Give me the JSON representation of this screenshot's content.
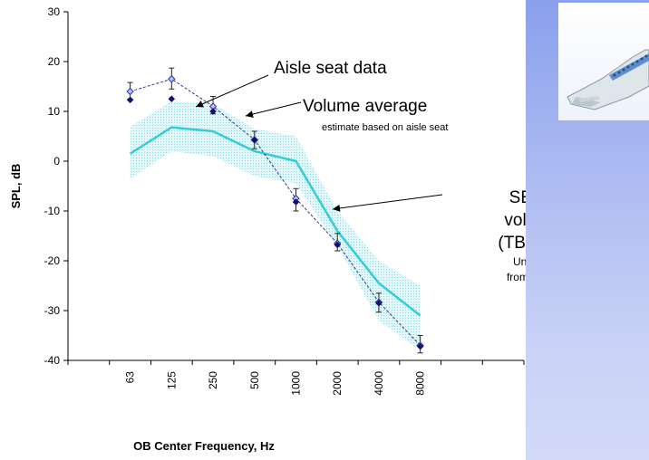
{
  "chart_data": {
    "type": "line",
    "xlabel": "OB Center Frequency, Hz",
    "ylabel": "SPL, dB",
    "ylim": [
      -40,
      30
    ],
    "yticks": [
      30,
      20,
      10,
      0,
      -10,
      -20,
      -30,
      -40
    ],
    "categories": [
      "63",
      "125",
      "250",
      "500",
      "1000",
      "2000",
      "4000",
      "8000"
    ],
    "grid": false,
    "legend": "none",
    "series": [
      {
        "name": "",
        "style": "band",
        "color": "#9fe3ea",
        "lower": [
          -3.5,
          2,
          1,
          -3,
          -4.5,
          -17,
          -32,
          -38
        ],
        "upper": [
          7,
          12,
          11.5,
          6.5,
          5,
          -10,
          -20,
          -25
        ]
      },
      {
        "name": "",
        "style": "line",
        "color": "#33ccd9",
        "values": [
          1.5,
          6.8,
          6,
          2,
          0,
          -14,
          -24.5,
          -31
        ]
      },
      {
        "name": "",
        "style": "dashed-markers",
        "color": "#33339a",
        "values": [
          14,
          16.5,
          11,
          4.3,
          -7.5,
          -16.5,
          -28.3,
          -37
        ],
        "err_low": [
          12.5,
          14.5,
          9.5,
          2.5,
          -10,
          -18,
          -30.3,
          -38.5
        ],
        "err_high": [
          15.8,
          18.7,
          13,
          6,
          -5.5,
          -14.5,
          -26.5,
          -35
        ]
      },
      {
        "name": "",
        "style": "markers",
        "color": "#10106a",
        "values": [
          12.3,
          12.5,
          10,
          4.2,
          -8.2,
          -16.8,
          -28.5,
          -37.2
        ]
      }
    ],
    "annotations": {
      "aisle": "Aisle seat data",
      "vol_avg": "Volume average",
      "vol_avg_sub": "estimate based on aisle seat",
      "sea_line1": "SEA prediction",
      "sea_line2": "volume average",
      "sea_line3": "(TBL source only)",
      "sea_line4": "Uncertainty estimated",
      "sea_line5": "from auto spectrum data"
    }
  }
}
